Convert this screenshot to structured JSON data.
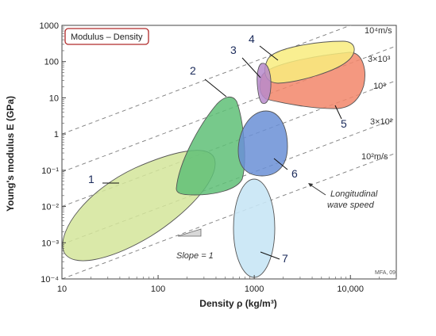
{
  "chart_data": {
    "type": "scatter",
    "title": "Modulus – Density",
    "xlabel": "Density ρ (kg/m³)",
    "ylabel": "Young's modulus E (GPa)",
    "x_scale": "log",
    "y_scale": "log",
    "xlim": [
      10,
      30000
    ],
    "ylim": [
      0.0001,
      1000
    ],
    "x_tick_labels": [
      "10",
      "100",
      "1000",
      "10,000"
    ],
    "y_tick_labels": [
      "10⁻⁴",
      "10⁻³",
      "10⁻²",
      "10⁻¹",
      "1",
      "10",
      "100",
      "1000"
    ],
    "grid": false,
    "regions": [
      {
        "label": "1",
        "color": "#d4e59a",
        "center": [
          70,
          0.012
        ]
      },
      {
        "label": "2",
        "color": "#5fbf77",
        "center": [
          380,
          0.9
        ]
      },
      {
        "label": "3",
        "color": "#b78acb",
        "center": [
          1600,
          60
        ]
      },
      {
        "label": "4",
        "color": "#f8ec7e",
        "center": [
          6500,
          200
        ]
      },
      {
        "label": "5",
        "color": "#f2866a",
        "center": [
          7500,
          50
        ]
      },
      {
        "label": "6",
        "color": "#6a8fd6",
        "center": [
          1800,
          0.7
        ]
      },
      {
        "label": "7",
        "color": "#c8e6f5",
        "center": [
          1250,
          0.0025
        ]
      }
    ],
    "guide_lines": [
      {
        "label": "10⁴m/s",
        "speed_m_per_s": 10000
      },
      {
        "label": "3×10³",
        "speed_m_per_s": 3000
      },
      {
        "label": "10³",
        "speed_m_per_s": 1000
      },
      {
        "label": "3×10²",
        "speed_m_per_s": 300
      },
      {
        "label": "10²m/s",
        "speed_m_per_s": 100
      }
    ],
    "annotations": {
      "slope": "Slope = 1",
      "wave_speed_line1": "Longitudinal",
      "wave_speed_line2": "wave speed",
      "credit": "MFA, 09"
    }
  }
}
